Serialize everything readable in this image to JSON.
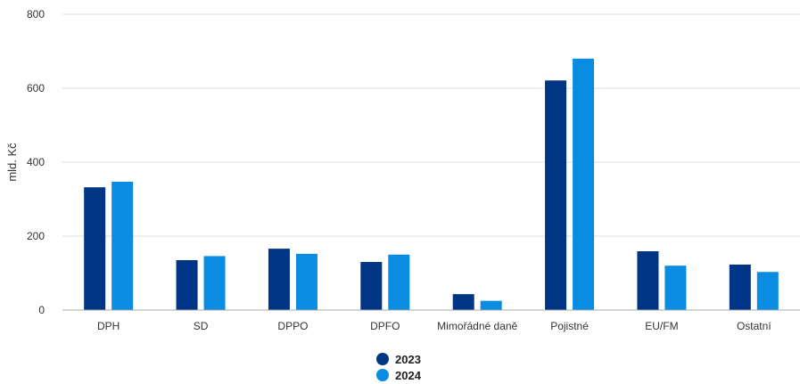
{
  "chart_data": {
    "type": "bar",
    "title": "",
    "xlabel": "",
    "ylabel": "mld. Kč",
    "ylim": [
      0,
      800
    ],
    "yticks": [
      0,
      200,
      400,
      600,
      800
    ],
    "grid": true,
    "legend_position": "bottom-center",
    "categories": [
      "DPH",
      "SD",
      "DPPO",
      "DPFO",
      "Mimořádné daně",
      "Pojistné",
      "EU/FM",
      "Ostatní"
    ],
    "series": [
      {
        "name": "2023",
        "color": "#003484",
        "values": [
          332,
          135,
          166,
          130,
          43,
          621,
          159,
          123
        ]
      },
      {
        "name": "2024",
        "color": "#0b8ce3",
        "values": [
          347,
          146,
          152,
          150,
          25,
          680,
          120,
          103
        ]
      }
    ]
  }
}
